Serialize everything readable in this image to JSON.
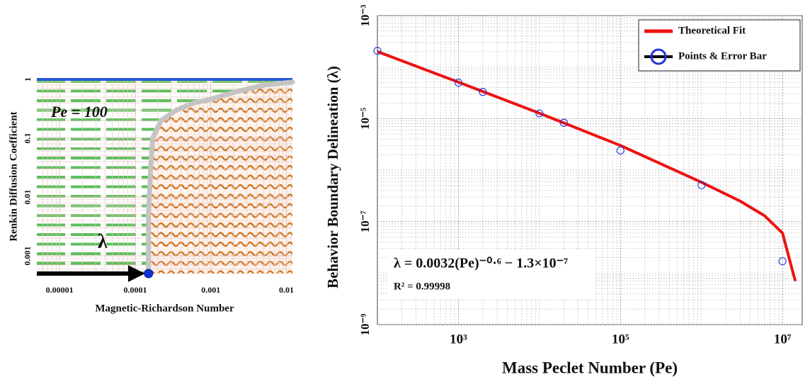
{
  "chart_data": [
    {
      "type": "phase",
      "xlabel": "Magnetic-Richardson Number",
      "ylabel": "Renkin Diffusion Coefficient",
      "annotations": [
        "Pe = 100",
        "λ"
      ],
      "xlim": [
        5e-06,
        0.012
      ],
      "ylim": [
        0.0005,
        1
      ],
      "xticks": [
        1e-05,
        0.0001,
        0.001,
        0.01
      ],
      "yticks": [
        0.001,
        0.01,
        0.1,
        1
      ],
      "log_x": true,
      "log_y": true,
      "grid": true,
      "minor_grid": true,
      "boundary": {
        "x": [
          0.00015,
          0.00015,
          0.00016,
          0.00017,
          0.00022,
          0.00035,
          0.0006,
          0.001,
          0.002,
          0.005,
          0.012
        ],
        "values": [
          0.0005,
          0.005,
          0.03,
          0.1,
          0.2,
          0.3,
          0.4,
          0.46,
          0.6,
          0.8,
          0.9
        ],
        "color": "#c4c4c4"
      },
      "left_color": "#5cbf5c",
      "right_color": "#d07a2a",
      "limit_line": {
        "value": 1,
        "color": "#2a5bd7"
      },
      "point": {
        "x": 0.00015,
        "y": 0.0005,
        "color": "#1030e0"
      }
    },
    {
      "type": "log-fit",
      "xlabel": "Mass Peclet Number (Pe)",
      "ylabel": "Behavior Boundary Delineation (λ)",
      "annotations": [
        "λ = 0.0032(Pe)⁻⁰·⁶ − 1.3×10⁻⁷",
        "R² = 0.99998"
      ],
      "xlim": [
        100,
        17500000
      ],
      "ylim": [
        1e-09,
        0.001
      ],
      "xticks": [
        {
          "value": 1000,
          "label": "10³"
        },
        {
          "value": 100000,
          "label": "10⁵"
        },
        {
          "value": 10000000,
          "label": "10⁷"
        }
      ],
      "yticks": [
        {
          "value": 1e-09,
          "label": "10⁻⁹"
        },
        {
          "value": 1e-07,
          "label": "10⁻⁷"
        },
        {
          "value": 1e-05,
          "label": "10⁻⁵"
        },
        {
          "value": 0.001,
          "label": "10⁻³"
        }
      ],
      "log_x": true,
      "log_y": true,
      "grid": true,
      "minor_grid": true,
      "legend": "upper right",
      "series": [
        {
          "name": "Theoretical Fit",
          "type": "line",
          "color": "#ee1111",
          "x": [
            100,
            1000,
            10000,
            100000,
            1000000,
            3000000,
            6000000,
            10000000,
            13000000,
            14400000
          ],
          "values": [
            0.0002,
            5.1e-05,
            1.27e-05,
            3e-06,
            5.8e-07,
            2.5e-07,
            1.3e-07,
            6e-08,
            1.25e-08,
            7e-09
          ]
        },
        {
          "name": "Points & Error Bar",
          "type": "scatter",
          "color": "#2233dd",
          "x": [
            100,
            1000,
            2000,
            10000,
            20000,
            100000,
            1000000,
            10000000
          ],
          "values": [
            0.000207,
            5e-05,
            3.3e-05,
            1.26e-05,
            8.3e-06,
            2.4e-06,
            5.1e-07,
            1.7e-08
          ]
        }
      ]
    }
  ]
}
